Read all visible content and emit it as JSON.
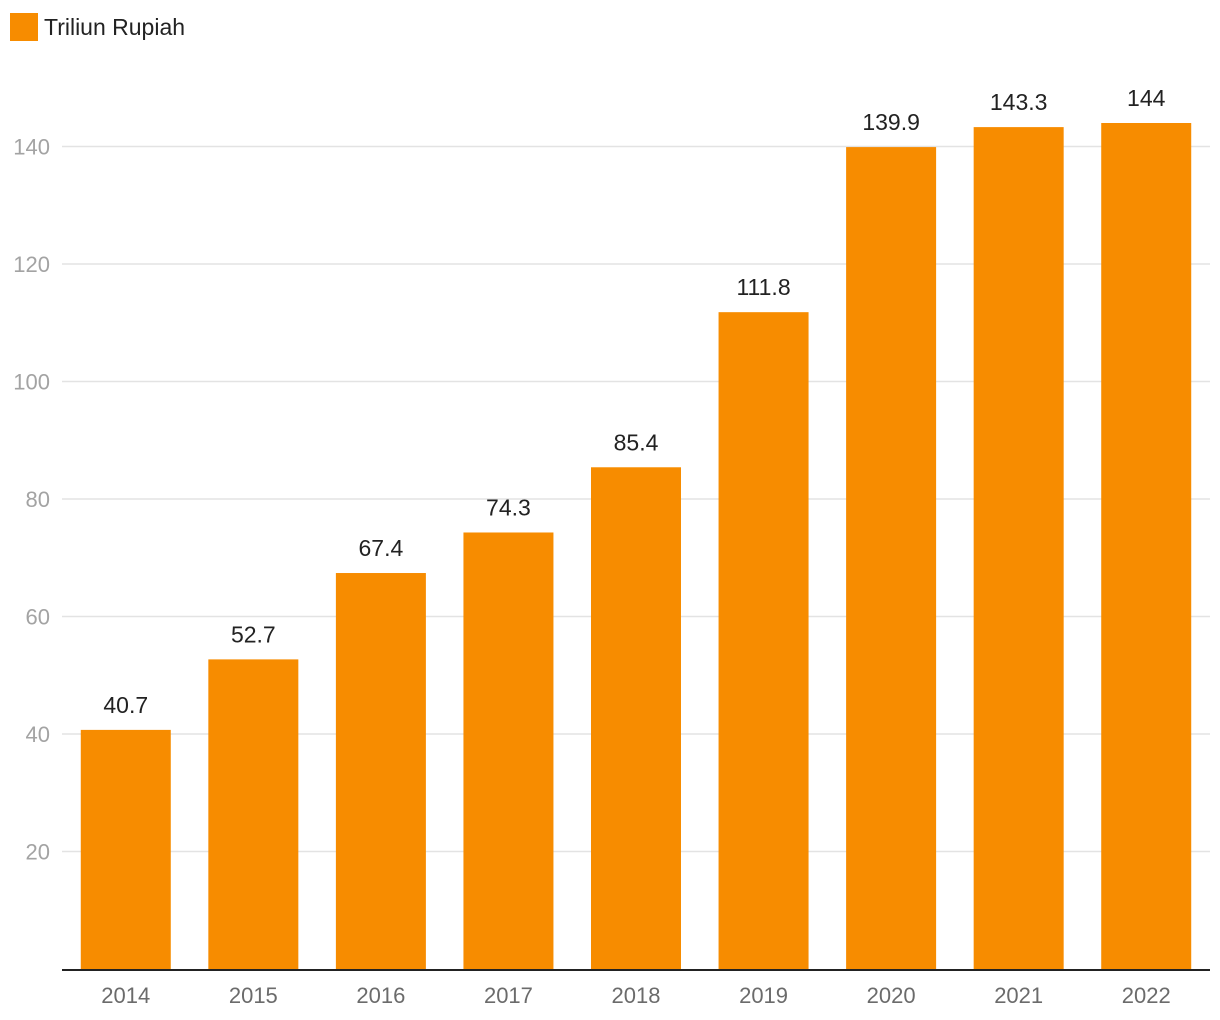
{
  "chart_data": {
    "type": "bar",
    "categories": [
      "2014",
      "2015",
      "2016",
      "2017",
      "2018",
      "2019",
      "2020",
      "2021",
      "2022"
    ],
    "series": [
      {
        "name": "Triliun Rupiah",
        "values": [
          40.7,
          52.7,
          67.4,
          74.3,
          85.4,
          111.8,
          139.9,
          143.3,
          144
        ],
        "labels": [
          "40.7",
          "52.7",
          "67.4",
          "74.3",
          "85.4",
          "111.8",
          "139.9",
          "143.3",
          "144"
        ]
      }
    ],
    "yticks": [
      "20",
      "40",
      "60",
      "80",
      "100",
      "120",
      "140"
    ],
    "ylim": [
      0,
      150
    ],
    "grid": true,
    "legend_position": "top-left",
    "colors": {
      "bar": "#f78c00",
      "grid": "#e3e3e3",
      "axis": "#222222"
    }
  }
}
